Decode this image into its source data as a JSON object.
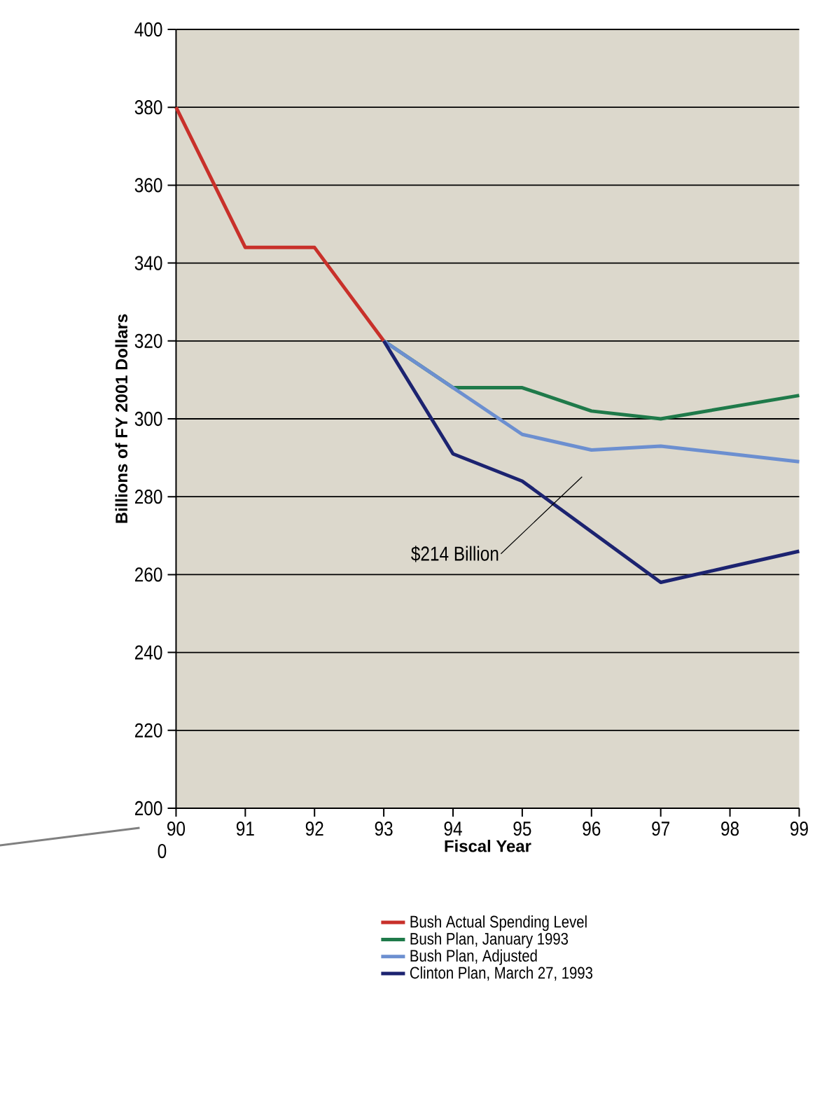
{
  "chart_data": {
    "type": "line",
    "xlabel": "Fiscal Year",
    "ylabel": "Billions of FY 2001 Dollars",
    "x": [
      90,
      91,
      92,
      93,
      94,
      95,
      96,
      97,
      98,
      99
    ],
    "xlim": [
      90,
      99
    ],
    "xticks": [
      90,
      91,
      92,
      93,
      94,
      95,
      96,
      97,
      98,
      99
    ],
    "ylim": [
      200,
      400
    ],
    "yticks": [
      200,
      220,
      240,
      260,
      280,
      300,
      320,
      340,
      360,
      380,
      400
    ],
    "grid": "y",
    "legend": "bottom",
    "line_style": "solid",
    "marker": "none",
    "series": [
      {
        "name": "Bush Actual Spending Level",
        "color": "#c8302a",
        "values": [
          380,
          344,
          344,
          320,
          null,
          null,
          null,
          null,
          null,
          null
        ]
      },
      {
        "name": "Bush Plan, January 1993",
        "color": "#1f7a4a",
        "values": [
          null,
          null,
          null,
          320,
          308,
          308,
          302,
          300,
          303,
          306
        ]
      },
      {
        "name": "Bush Plan, Adjusted",
        "color": "#6c8fd0",
        "values": [
          null,
          null,
          null,
          320,
          308,
          296,
          292,
          293,
          291,
          289
        ]
      },
      {
        "name": "Clinton Plan, March 27, 1993",
        "color": "#1c2370",
        "values": [
          null,
          null,
          null,
          320,
          291,
          284,
          271,
          258,
          262,
          266
        ]
      }
    ],
    "annotations": [
      {
        "text": "$214 Billion",
        "x": 95.5,
        "y": 279
      },
      "0"
    ]
  }
}
